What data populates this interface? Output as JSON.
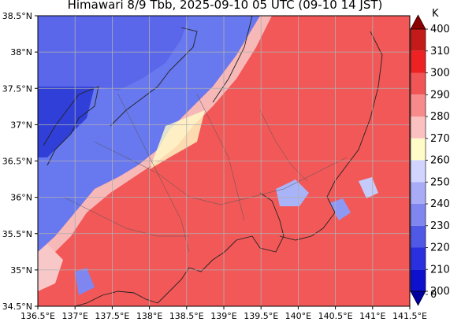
{
  "title": "Himawari 8/9 Tbb, 2025-09-10 05 UTC (09-10 14 JST)",
  "map": {
    "x_ticks": [
      "136.5°E",
      "137°E",
      "137.5°E",
      "138°E",
      "138.5°E",
      "139°E",
      "139.5°E",
      "140°E",
      "140.5°E",
      "141°E",
      "141.5°E"
    ],
    "y_ticks": [
      "38.5°N",
      "38°N",
      "37.5°N",
      "37°N",
      "36.5°N",
      "36°N",
      "35.5°N",
      "35°N",
      "34.5°N"
    ],
    "lon_range": [
      136.5,
      141.5
    ],
    "lat_range": [
      34.5,
      38.5
    ],
    "grid": true
  },
  "colorbar": {
    "unit": "K",
    "labels": [
      "400",
      "310",
      "300",
      "290",
      "280",
      "270",
      "260",
      "250",
      "240",
      "230",
      "220",
      "210",
      "200",
      "0"
    ],
    "colors": [
      "#8b0000",
      "#c41a1a",
      "#ee2222",
      "#f25555",
      "#f78a8a",
      "#fbc0c0",
      "#fffcc8",
      "#d0d4ff",
      "#a8acf6",
      "#7f86ef",
      "#5058e6",
      "#2a30e0",
      "#0d10cc",
      "#00009e"
    ],
    "extend": "both"
  },
  "colors": {
    "cold": "#5c6cf0",
    "warm": "#f24848"
  }
}
